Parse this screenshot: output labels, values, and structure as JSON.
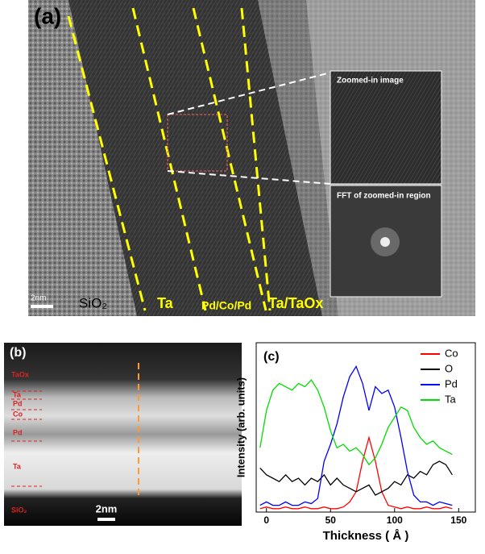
{
  "panel_a": {
    "label": "(a)",
    "layers": [
      "SiO₂",
      "Ta",
      "Pd/Co/Pd",
      "Ta/TaOx"
    ],
    "scale_bar": "2nm",
    "insets": [
      "Zoomed-in image",
      "FFT of zoomed-in region"
    ]
  },
  "panel_b": {
    "label": "(b)",
    "layers": [
      "TaOx",
      "Ta",
      "Pd",
      "Co",
      "Pd",
      "Ta",
      "SiO₂"
    ],
    "scale_bar": "2nm"
  },
  "chart_data": {
    "type": "line",
    "panel_label": "(c)",
    "xlabel": "Thickness ( Å )",
    "ylabel": "Intensity (arb. units)",
    "x": [
      -5,
      0,
      5,
      10,
      15,
      20,
      25,
      30,
      35,
      40,
      45,
      50,
      55,
      60,
      65,
      70,
      75,
      80,
      85,
      90,
      95,
      100,
      105,
      110,
      115,
      120,
      125,
      130,
      135,
      140,
      145
    ],
    "series": [
      {
        "name": "Co",
        "color": "#ff0000",
        "values": [
          2,
          3,
          2,
          2,
          3,
          2,
          2,
          3,
          2,
          2,
          3,
          2,
          2,
          3,
          6,
          12,
          30,
          44,
          30,
          12,
          4,
          3,
          2,
          3,
          2,
          2,
          3,
          2,
          2,
          3,
          2
        ]
      },
      {
        "name": "O",
        "color": "#000000",
        "values": [
          26,
          22,
          20,
          18,
          22,
          18,
          20,
          16,
          20,
          18,
          22,
          16,
          20,
          16,
          14,
          12,
          14,
          16,
          10,
          12,
          14,
          18,
          16,
          22,
          20,
          24,
          22,
          28,
          30,
          28,
          22
        ]
      },
      {
        "name": "Pd",
        "color": "#0000ff",
        "values": [
          4,
          6,
          4,
          4,
          6,
          4,
          4,
          6,
          5,
          8,
          30,
          40,
          52,
          68,
          80,
          86,
          76,
          60,
          74,
          70,
          72,
          62,
          44,
          24,
          10,
          6,
          6,
          4,
          6,
          5,
          4
        ]
      },
      {
        "name": "Ta",
        "color": "#00dd00",
        "values": [
          38,
          60,
          72,
          76,
          74,
          72,
          76,
          74,
          78,
          72,
          62,
          48,
          38,
          40,
          36,
          38,
          34,
          28,
          32,
          40,
          50,
          56,
          62,
          60,
          50,
          44,
          40,
          42,
          38,
          36,
          34
        ]
      }
    ],
    "xlim": [
      -8,
      163
    ],
    "ylim": [
      0,
      100
    ],
    "xticks": [
      0,
      50,
      100,
      150
    ],
    "legend": "upper right"
  }
}
